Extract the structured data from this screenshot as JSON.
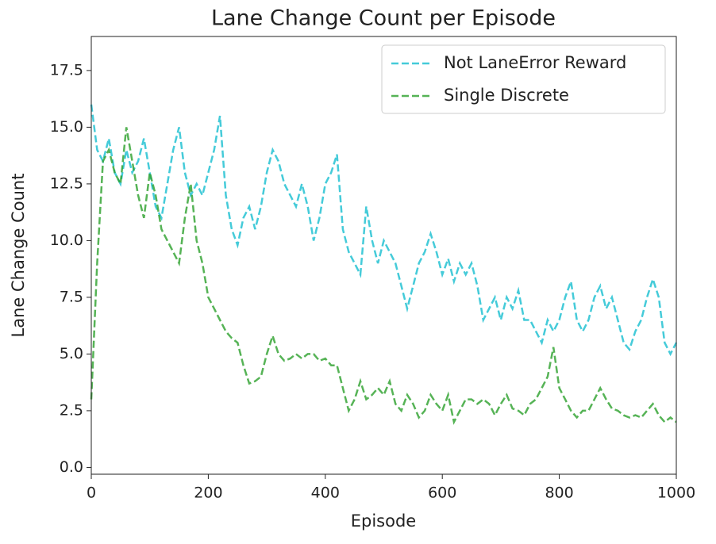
{
  "chart_data": {
    "type": "line",
    "title": "Lane Change Count per Episode",
    "x_label": "Episode",
    "y_label": "Lane Change Count",
    "xlim": [
      0,
      1000
    ],
    "ylim": [
      -0.3,
      19.0
    ],
    "xticks": [
      0,
      200,
      400,
      600,
      800,
      1000
    ],
    "yticks": [
      {
        "value": 0,
        "label": "0.0"
      },
      2.5,
      {
        "value": 5,
        "label": "5.0"
      },
      7.5,
      {
        "value": 10,
        "label": "10.0"
      },
      12.5,
      {
        "value": 15,
        "label": "15.0"
      },
      17.5
    ],
    "legend": "upper right",
    "x": [
      0,
      10,
      20,
      30,
      40,
      50,
      60,
      70,
      80,
      90,
      100,
      110,
      120,
      130,
      140,
      150,
      160,
      170,
      180,
      190,
      200,
      210,
      220,
      230,
      240,
      250,
      260,
      270,
      280,
      290,
      300,
      310,
      320,
      330,
      340,
      350,
      360,
      370,
      380,
      390,
      400,
      410,
      420,
      430,
      440,
      450,
      460,
      470,
      480,
      490,
      500,
      510,
      520,
      530,
      540,
      550,
      560,
      570,
      580,
      590,
      600,
      610,
      620,
      630,
      640,
      650,
      660,
      670,
      680,
      690,
      700,
      710,
      720,
      730,
      740,
      750,
      760,
      770,
      780,
      790,
      800,
      810,
      820,
      830,
      840,
      850,
      860,
      870,
      880,
      890,
      900,
      910,
      920,
      930,
      940,
      950,
      960,
      970,
      980,
      990,
      1000
    ],
    "series": [
      {
        "name": "Not LaneError Reward",
        "color": "#17becf",
        "values": [
          16,
          14,
          13.5,
          14.5,
          13,
          12.5,
          14,
          13,
          13.5,
          14.5,
          13,
          11.5,
          11,
          12.5,
          14,
          15,
          13,
          12,
          12.5,
          12,
          13,
          14,
          15.5,
          12,
          10.5,
          9.8,
          11,
          11.5,
          10.5,
          11.5,
          13,
          14,
          13.5,
          12.5,
          12,
          11.5,
          12.5,
          11.5,
          10,
          11,
          12.5,
          13,
          13.8,
          10.5,
          9.5,
          9,
          8.5,
          11.5,
          10,
          9,
          10,
          9.5,
          9,
          8,
          7,
          8,
          9,
          9.5,
          10.3,
          9.5,
          8.5,
          9.2,
          8.2,
          9,
          8.5,
          9,
          8,
          6.5,
          7,
          7.5,
          6.5,
          7.5,
          7,
          7.8,
          6.5,
          6.5,
          6,
          5.5,
          6.5,
          6,
          6.5,
          7.5,
          8.2,
          6.5,
          6,
          6.5,
          7.5,
          8,
          7,
          7.5,
          6.5,
          5.5,
          5.2,
          6,
          6.5,
          7.5,
          8.3,
          7.5,
          5.5,
          5,
          5.5
        ]
      },
      {
        "name": "Single Discrete",
        "color": "#2ca02c",
        "values": [
          3,
          9,
          13.5,
          14,
          13,
          12.5,
          15,
          13.5,
          12,
          11,
          13,
          12,
          10.5,
          10,
          9.5,
          9,
          11,
          12.5,
          10,
          9,
          7.5,
          7,
          6.5,
          6,
          5.7,
          5.5,
          4.5,
          3.7,
          3.8,
          4,
          5,
          5.8,
          5,
          4.7,
          4.8,
          5,
          4.8,
          5,
          5,
          4.7,
          4.8,
          4.5,
          4.5,
          3.5,
          2.5,
          3,
          3.8,
          3,
          3.2,
          3.5,
          3.2,
          3.8,
          2.8,
          2.5,
          3.2,
          2.8,
          2.2,
          2.5,
          3.2,
          2.8,
          2.5,
          3.2,
          2,
          2.5,
          3,
          3,
          2.8,
          3,
          2.8,
          2.3,
          2.8,
          3.2,
          2.6,
          2.5,
          2.3,
          2.8,
          3,
          3.5,
          4,
          5.3,
          3.5,
          3,
          2.5,
          2.2,
          2.5,
          2.5,
          3,
          3.5,
          3,
          2.6,
          2.5,
          2.3,
          2.2,
          2.3,
          2.2,
          2.5,
          2.8,
          2.3,
          2,
          2.2,
          2
        ]
      }
    ]
  }
}
